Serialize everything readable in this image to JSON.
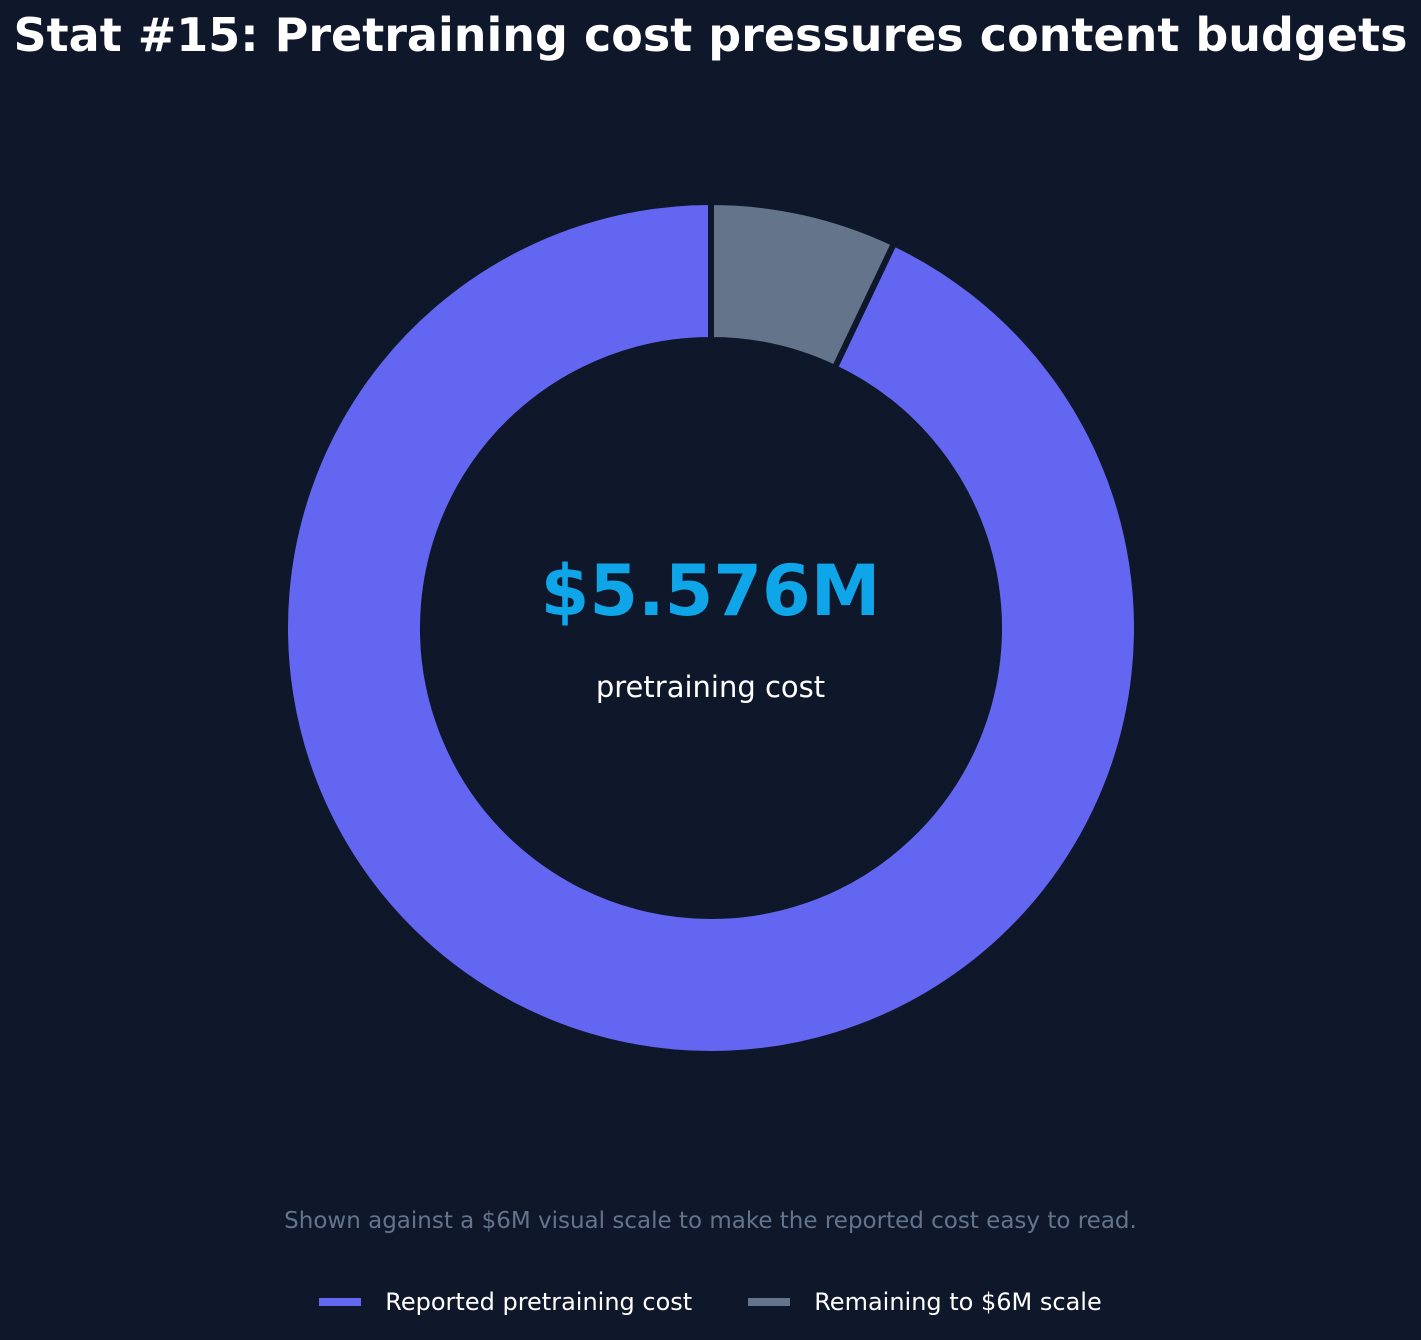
{
  "chart_data": {
    "type": "pie",
    "title": "Stat #15: Pretraining cost pressures content budgets",
    "center_value": "$5.576M",
    "center_label": "pretraining cost",
    "note": "Shown against a $6M visual scale to make the reported cost easy to read.",
    "scale_max": 6,
    "slices": [
      {
        "label": "Reported pretraining cost",
        "value": 5.576,
        "color": "#6366f1"
      },
      {
        "label": "Remaining to $6M scale",
        "value": 0.424,
        "color": "#64748b"
      }
    ],
    "legend_position": "bottom-center"
  },
  "colors": {
    "background": "#0f172a",
    "title": "#ffffff",
    "center_value": "#0ea5e9",
    "note": "#64748b"
  }
}
